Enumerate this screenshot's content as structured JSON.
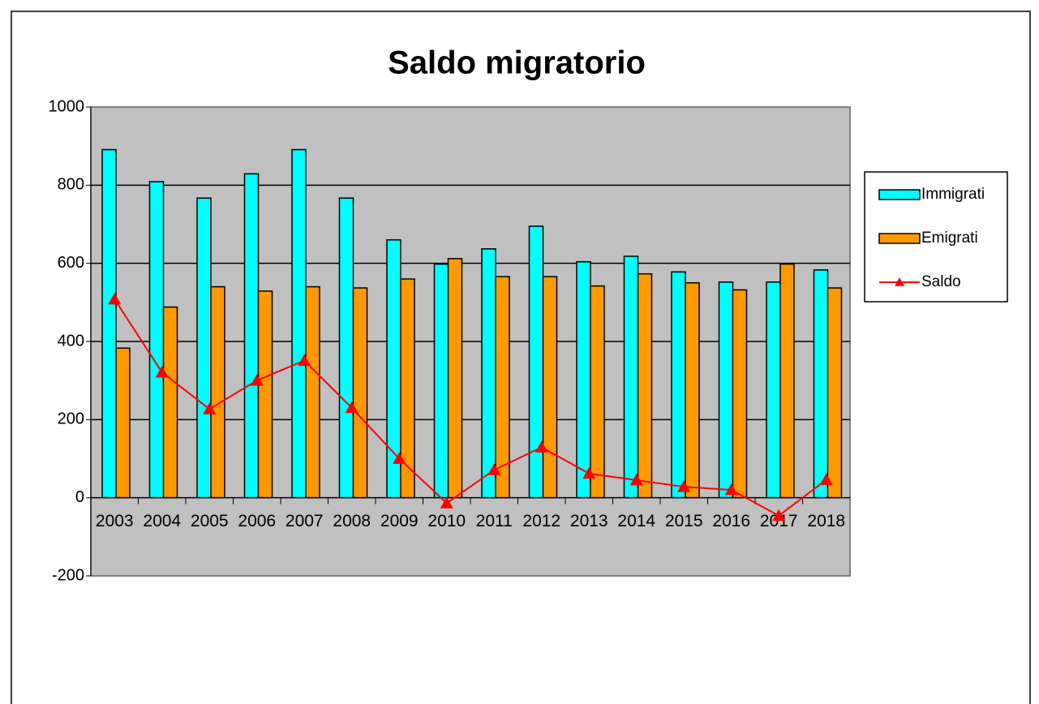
{
  "chart_data": {
    "type": "bar",
    "title": "Saldo migratorio",
    "categories": [
      "2003",
      "2004",
      "2005",
      "2006",
      "2007",
      "2008",
      "2009",
      "2010",
      "2011",
      "2012",
      "2013",
      "2014",
      "2015",
      "2016",
      "2017",
      "2018"
    ],
    "series": [
      {
        "name": "Immigrati",
        "color": "#00ffff",
        "type": "bar",
        "values": [
          891,
          809,
          767,
          829,
          891,
          767,
          660,
          598,
          637,
          695,
          604,
          618,
          578,
          552,
          552,
          583
        ]
      },
      {
        "name": "Emigrati",
        "color": "#ff9900",
        "type": "bar",
        "values": [
          383,
          488,
          540,
          529,
          540,
          537,
          560,
          612,
          566,
          566,
          542,
          573,
          550,
          532,
          598,
          537
        ]
      },
      {
        "name": "Saldo",
        "color": "#ff0000",
        "type": "line",
        "values": [
          508,
          321,
          227,
          300,
          351,
          230,
          100,
          -14,
          71,
          129,
          62,
          45,
          28,
          20,
          -46,
          46
        ]
      }
    ],
    "ylim": [
      -200,
      1000
    ],
    "yticks": [
      -200,
      0,
      200,
      400,
      600,
      800,
      1000
    ],
    "grid": true,
    "legend": "right",
    "plot_background": "#c0c0c0"
  }
}
